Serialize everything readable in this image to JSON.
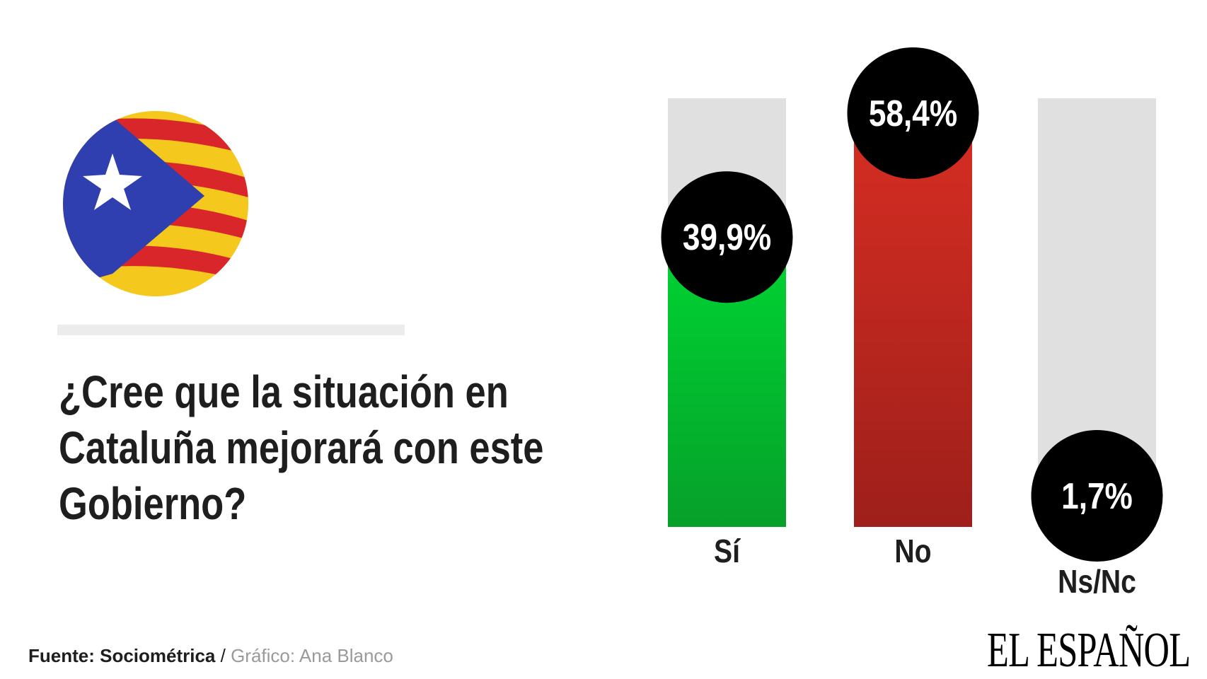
{
  "title": "¿Cree que la situación en Cataluña mejorará con este Gobierno?",
  "title_lines": [
    "¿Cree que la situación en",
    "Cataluña mejorará con este",
    "Gobierno?"
  ],
  "footer": {
    "source_label": "Fuente: Sociométrica",
    "separator": " / ",
    "credit": "Gráfico: Ana Blanco"
  },
  "logo": "EL ESPAÑOL",
  "chart_data": {
    "type": "bar",
    "categories": [
      "Sí",
      "No",
      "Ns/Nc"
    ],
    "values": [
      39.9,
      58.4,
      1.7
    ],
    "value_labels": [
      "39,9%",
      "58,4%",
      "1,7%"
    ],
    "colors": [
      "#0fbf2e",
      "#c8281f",
      "#e0e0e0"
    ],
    "background_bar_color": "#e0e0e0",
    "ylim": [
      0,
      64
    ],
    "grid": false
  }
}
